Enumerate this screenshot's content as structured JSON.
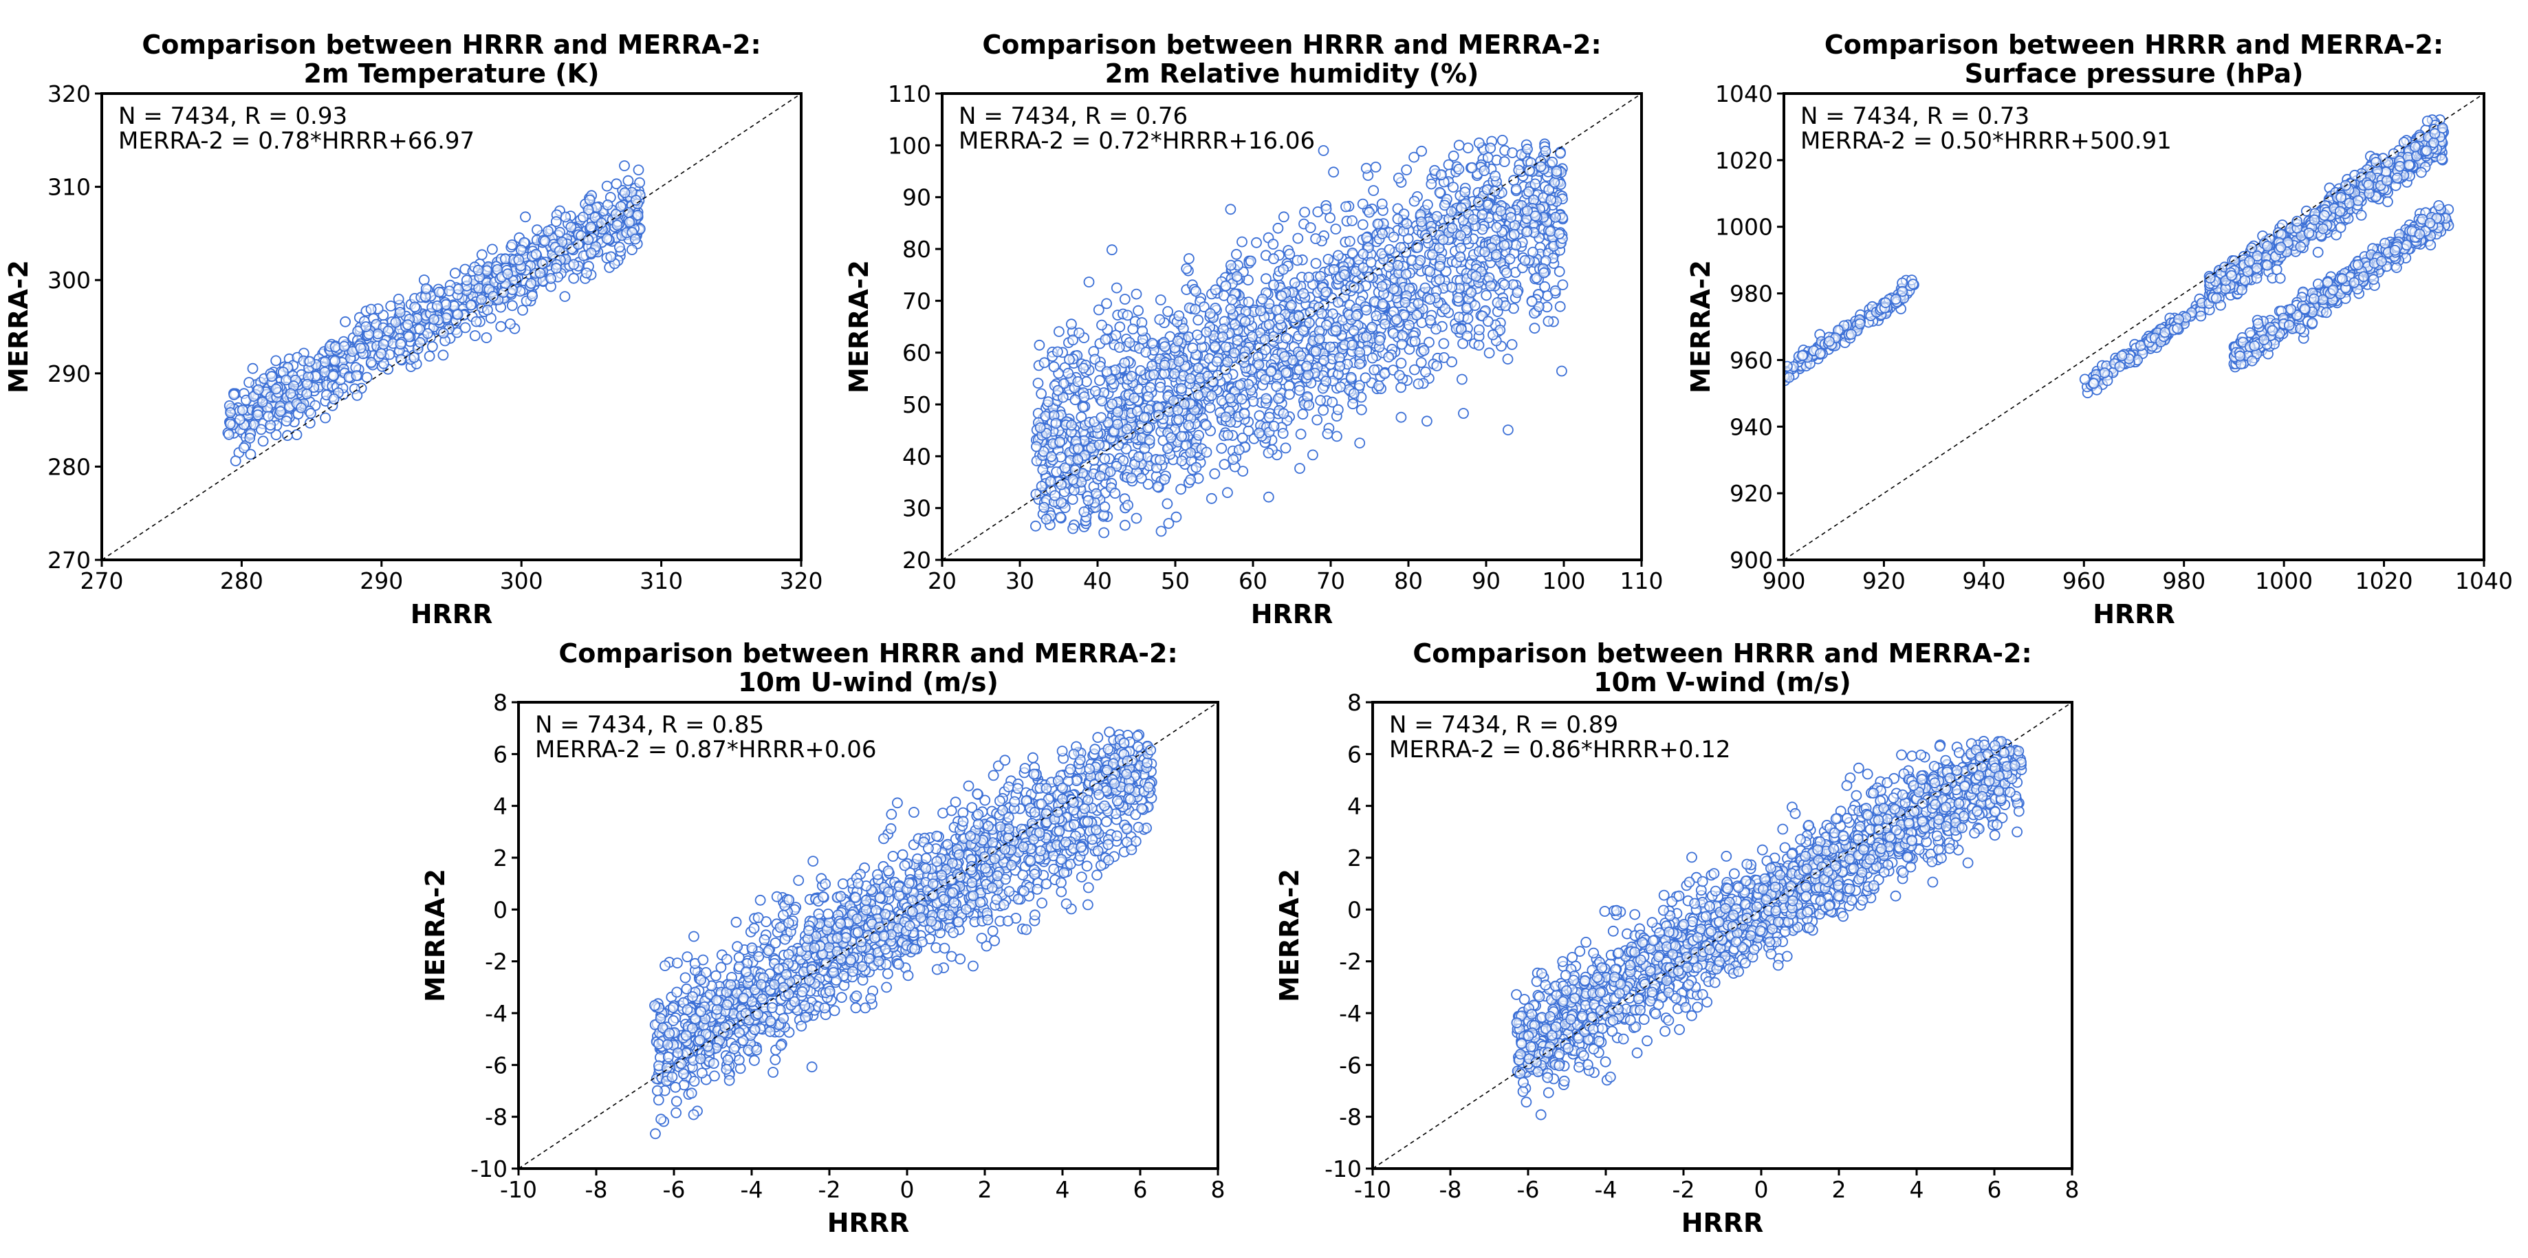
{
  "style": {
    "marker_edge_color": "#3b6fd6",
    "marker_fill": "#ffffff",
    "frame_color": "#000000"
  },
  "chart_data": [
    {
      "type": "scatter",
      "title": "Comparison between HRRR and MERRA-2:",
      "subtitle": "2m Temperature (K)",
      "xlabel": "HRRR",
      "ylabel": "MERRA-2",
      "xlim": [
        270,
        320
      ],
      "ylim": [
        270,
        320
      ],
      "xticks": [
        270,
        280,
        290,
        300,
        310,
        320
      ],
      "yticks": [
        270,
        280,
        290,
        300,
        310,
        320
      ],
      "annotation_lines": [
        "N = 7434, R = 0.93",
        "MERRA-2 = 0.78*HRRR+66.97"
      ],
      "n": 7434,
      "r": 0.93,
      "fit": {
        "slope": 0.78,
        "intercept": 66.97
      },
      "one_to_one_line": true,
      "clusters": [
        {
          "x_range": [
            279,
            308.5
          ],
          "slope": 0.78,
          "intercept": 66.97,
          "noise": 2.0,
          "count": 900
        }
      ]
    },
    {
      "type": "scatter",
      "title": "Comparison between HRRR and MERRA-2:",
      "subtitle": "2m Relative humidity (%)",
      "xlabel": "HRRR",
      "ylabel": "MERRA-2",
      "xlim": [
        20,
        110
      ],
      "ylim": [
        20,
        110
      ],
      "xticks": [
        20,
        30,
        40,
        50,
        60,
        70,
        80,
        90,
        100,
        110
      ],
      "yticks": [
        20,
        30,
        40,
        50,
        60,
        70,
        80,
        90,
        100,
        110
      ],
      "annotation_lines": [
        "N = 7434, R = 0.76",
        "MERRA-2 = 0.72*HRRR+16.06"
      ],
      "n": 7434,
      "r": 0.76,
      "fit": {
        "slope": 0.72,
        "intercept": 16.06
      },
      "one_to_one_line": true,
      "clusters": [
        {
          "x_range": [
            32,
            100
          ],
          "slope": 0.72,
          "intercept": 16.06,
          "noise": 10.5,
          "count": 2200,
          "clip": [
            25,
            101
          ]
        }
      ]
    },
    {
      "type": "scatter",
      "title": "Comparison between HRRR and MERRA-2:",
      "subtitle": "Surface pressure (hPa)",
      "xlabel": "HRRR",
      "ylabel": "MERRA-2",
      "xlim": [
        900,
        1040
      ],
      "ylim": [
        900,
        1040
      ],
      "xticks": [
        900,
        920,
        940,
        960,
        980,
        1000,
        1020,
        1040
      ],
      "yticks": [
        900,
        920,
        940,
        960,
        980,
        1000,
        1020,
        1040
      ],
      "annotation_lines": [
        "N = 7434, R = 0.73",
        "MERRA-2 = 0.50*HRRR+500.91"
      ],
      "n": 7434,
      "r": 0.73,
      "fit": {
        "slope": 0.5,
        "intercept": 500.91
      },
      "one_to_one_line": true,
      "clusters": [
        {
          "x_range": [
            900,
            926
          ],
          "slope": 1.0,
          "intercept": 56,
          "noise": 1.5,
          "count": 160
        },
        {
          "x_range": [
            960,
            984
          ],
          "slope": 1.0,
          "intercept": -8,
          "noise": 1.2,
          "count": 160
        },
        {
          "x_range": [
            985,
            1032
          ],
          "slope": 1.0,
          "intercept": -5,
          "noise": 2.8,
          "count": 750
        },
        {
          "x_range": [
            990,
            1033
          ],
          "slope": 1.0,
          "intercept": -29,
          "noise": 2.5,
          "count": 500
        }
      ]
    },
    {
      "type": "scatter",
      "title": "Comparison between HRRR and MERRA-2:",
      "subtitle": "10m U-wind (m/s)",
      "xlabel": "HRRR",
      "ylabel": "MERRA-2",
      "xlim": [
        -10,
        8
      ],
      "ylim": [
        -10,
        8
      ],
      "xticks": [
        -10,
        -8,
        -6,
        -4,
        -2,
        0,
        2,
        4,
        6,
        8
      ],
      "yticks": [
        -10,
        -8,
        -6,
        -4,
        -2,
        0,
        2,
        4,
        6,
        8
      ],
      "annotation_lines": [
        "N = 7434, R = 0.85",
        "MERRA-2 = 0.87*HRRR+0.06"
      ],
      "n": 7434,
      "r": 0.85,
      "fit": {
        "slope": 0.87,
        "intercept": 0.06
      },
      "one_to_one_line": true,
      "clusters": [
        {
          "x_range": [
            -6.5,
            6.3
          ],
          "slope": 0.87,
          "intercept": 0.06,
          "noise": 1.3,
          "count": 1800,
          "clip": [
            -9.2,
            7
          ]
        }
      ]
    },
    {
      "type": "scatter",
      "title": "Comparison between HRRR and MERRA-2:",
      "subtitle": "10m V-wind (m/s)",
      "xlabel": "HRRR",
      "ylabel": "MERRA-2",
      "xlim": [
        -10,
        8
      ],
      "ylim": [
        -10,
        8
      ],
      "xticks": [
        -10,
        -8,
        -6,
        -4,
        -2,
        0,
        2,
        4,
        6,
        8
      ],
      "yticks": [
        -10,
        -8,
        -6,
        -4,
        -2,
        0,
        2,
        4,
        6,
        8
      ],
      "annotation_lines": [
        "N = 7434, R = 0.89",
        "MERRA-2 = 0.86*HRRR+0.12"
      ],
      "n": 7434,
      "r": 0.89,
      "fit": {
        "slope": 0.86,
        "intercept": 0.12
      },
      "one_to_one_line": true,
      "clusters": [
        {
          "x_range": [
            -6.3,
            6.7
          ],
          "slope": 0.86,
          "intercept": 0.12,
          "noise": 1.1,
          "count": 1800,
          "clip": [
            -8.2,
            6.5
          ]
        }
      ]
    }
  ]
}
